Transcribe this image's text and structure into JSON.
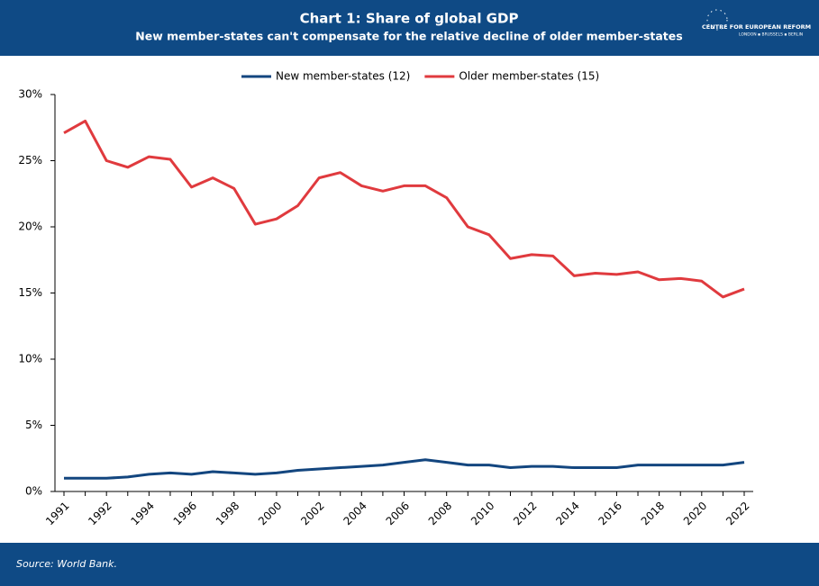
{
  "chart_data": {
    "type": "line",
    "title": "Chart 1: Share of global GDP",
    "subtitle": "New member-states can't compensate for the relative decline of older member-states",
    "logo": {
      "name": "CENTRE FOR EUROPEAN REFORM",
      "cities": "LONDON ▪ BRUSSELS ▪ BERLIN"
    },
    "source": "Source: World Bank.",
    "categories": [
      "1991",
      null,
      "1992",
      null,
      "1994",
      null,
      "1996",
      null,
      "1998",
      null,
      "2000",
      null,
      "2002",
      null,
      "2004",
      null,
      "2006",
      null,
      "2008",
      null,
      "2010",
      null,
      "2012",
      null,
      "2014",
      null,
      "2016",
      null,
      "2018",
      null,
      "2020",
      null,
      "2022"
    ],
    "series": [
      {
        "name": "New member-states (12)",
        "color": "#13467f",
        "values": [
          1.0,
          1.0,
          1.0,
          1.1,
          1.3,
          1.4,
          1.3,
          1.5,
          1.4,
          1.3,
          1.4,
          1.6,
          1.7,
          1.8,
          1.9,
          2.0,
          2.2,
          2.4,
          2.2,
          2.0,
          2.0,
          1.8,
          1.9,
          1.9,
          1.8,
          1.8,
          1.8,
          2.0,
          2.0,
          2.0,
          2.0,
          2.0,
          2.2
        ]
      },
      {
        "name": "Older member-states (15)",
        "color": "#e03a3e",
        "values": [
          27.1,
          28.0,
          25.0,
          24.5,
          25.3,
          25.1,
          23.0,
          23.7,
          22.9,
          20.2,
          20.6,
          21.6,
          23.7,
          24.1,
          23.1,
          22.7,
          23.1,
          23.1,
          22.2,
          20.0,
          19.4,
          17.6,
          17.9,
          17.8,
          16.3,
          16.5,
          16.4,
          16.6,
          16.0,
          16.1,
          15.9,
          14.7,
          15.3
        ]
      }
    ],
    "ylim": [
      0,
      30
    ],
    "yticks": [
      {
        "value": 0,
        "label": "0%"
      },
      {
        "value": 5,
        "label": "5%"
      },
      {
        "value": 10,
        "label": "10%"
      },
      {
        "value": 15,
        "label": "15%"
      },
      {
        "value": 20,
        "label": "20%"
      },
      {
        "value": 25,
        "label": "25%"
      },
      {
        "value": 30,
        "label": "30%"
      }
    ],
    "grid": false,
    "legend": "top"
  }
}
